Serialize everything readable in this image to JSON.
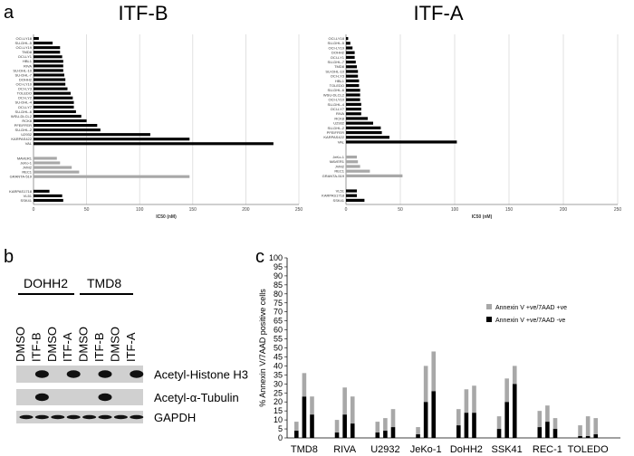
{
  "panel_labels": {
    "a": "a",
    "b": "b",
    "c": "c"
  },
  "colors": {
    "dark": "#000000",
    "light": "#a8a8a8",
    "grid": "#d9d9d9",
    "axis": "#7f7f7f"
  },
  "blot": {
    "group_labels": [
      "DOHH2",
      "TMD8"
    ],
    "lanes": [
      "DMSO",
      "ITF-B",
      "DMSO",
      "ITF-A",
      "DMSO",
      "ITF-B",
      "DMSO",
      "ITF-A"
    ],
    "rows": [
      "Acetyl-Histone H3",
      "Acetyl-α-Tubulin",
      "GAPDH"
    ]
  },
  "chart_data": [
    {
      "type": "bar",
      "orientation": "horizontal",
      "title": "ITF-B",
      "xlabel": "IC50 (nM)",
      "xlim": [
        0,
        250
      ],
      "xticks": [
        0,
        50,
        100,
        150,
        200,
        250
      ],
      "grid": true,
      "groups": [
        {
          "color": "dark",
          "categories": [
            "OCI-LY18",
            "SU-DHL-5",
            "OCI-LY19",
            "TMD8",
            "OCI-LY1",
            "HBL1",
            "RIVA",
            "SU-DHL-10",
            "SU-DHL-7",
            "DOHH2",
            "OCI-LY10",
            "OCI-LY3",
            "TOLEDO",
            "OCI-LY2",
            "SU-DHL-4",
            "OCI-LY7",
            "SU-DHL-6",
            "WSU-DLCL2",
            "RCK8",
            "PFEIFFER",
            "SU-DHL-2",
            "U2932",
            "KARPAS422",
            "VAL"
          ],
          "values": [
            5,
            18,
            25,
            25,
            27,
            28,
            28,
            28,
            29,
            30,
            30,
            32,
            35,
            37,
            38,
            38,
            40,
            45,
            50,
            60,
            63,
            110,
            147,
            226
          ]
        },
        {
          "color": "light",
          "categories": [
            "MAVER1",
            "JeKo-1",
            "JVM2",
            "REC1",
            "GRANTA-519"
          ],
          "values": [
            22,
            25,
            36,
            43,
            147
          ]
        },
        {
          "color": "dark",
          "categories": [
            "KARPAS1718",
            "VL51",
            "SSK41"
          ],
          "values": [
            15,
            27,
            28
          ]
        }
      ]
    },
    {
      "type": "bar",
      "orientation": "horizontal",
      "title": "ITF-A",
      "xlabel": "IC50 (nM)",
      "xlim": [
        0,
        250
      ],
      "xticks": [
        0,
        50,
        100,
        150,
        200,
        250
      ],
      "grid": true,
      "groups": [
        {
          "color": "dark",
          "categories": [
            "OCI-LY18",
            "SU-DHL-5",
            "OCI-LY19",
            "DOHH2",
            "OCI-LY1",
            "SU-DHL-7",
            "TMD8",
            "SU-DHL-10",
            "OCI-LY3",
            "HBL1",
            "TOLEDO",
            "SU-DHL-6",
            "WSU-DLCL2",
            "OCI-LY10",
            "SU-DHL-4",
            "OCI-LY7",
            "RIVA",
            "RCK8",
            "U2932",
            "SU-DHL-2",
            "PFEIFFER",
            "KARPAS422",
            "VAL"
          ],
          "values": [
            2,
            4,
            6,
            8,
            8,
            9,
            10,
            11,
            11,
            12,
            12,
            13,
            13,
            13,
            14,
            14,
            14,
            20,
            25,
            32,
            33,
            40,
            102
          ]
        },
        {
          "color": "light",
          "categories": [
            "JeKo-1",
            "MAVER1",
            "JVM2",
            "REC1",
            "GRANTA-519"
          ],
          "values": [
            10,
            11,
            13,
            22,
            52
          ]
        },
        {
          "color": "dark",
          "categories": [
            "VL51",
            "KARPAS1718",
            "SSK41"
          ],
          "values": [
            10,
            10,
            17
          ]
        }
      ]
    },
    {
      "type": "bar",
      "stacked": true,
      "ylabel": "% Annexin V/7AAD positive cells",
      "ylim": [
        0,
        100
      ],
      "yticks": [
        0,
        5,
        10,
        15,
        20,
        25,
        30,
        35,
        40,
        45,
        50,
        55,
        60,
        65,
        70,
        75,
        80,
        85,
        90,
        95,
        100
      ],
      "grid": false,
      "legend": "upper-right",
      "categories": [
        "TMD8",
        "RIVA",
        "U2932",
        "JeKo-1",
        "DoHH2",
        "SSK41",
        "REC-1",
        "TOLEDO"
      ],
      "bars_per_category": 3,
      "series": [
        {
          "name": "Annexin V +ve/7AAD -ve",
          "color": "dark",
          "values": [
            [
              4,
              23,
              13
            ],
            [
              3,
              13,
              8
            ],
            [
              3,
              4,
              6
            ],
            [
              2,
              20,
              26
            ],
            [
              7,
              14,
              14
            ],
            [
              5,
              20,
              30
            ],
            [
              6,
              9,
              5
            ],
            [
              1,
              1,
              2
            ]
          ]
        },
        {
          "name": "Annexin V +ve/7AAD +ve",
          "color": "light",
          "values": [
            [
              5,
              13,
              10
            ],
            [
              7,
              15,
              15
            ],
            [
              6,
              7,
              10
            ],
            [
              4,
              20,
              22
            ],
            [
              9,
              13,
              15
            ],
            [
              7,
              13,
              10
            ],
            [
              9,
              9,
              6
            ],
            [
              6,
              11,
              9
            ]
          ]
        }
      ]
    }
  ]
}
